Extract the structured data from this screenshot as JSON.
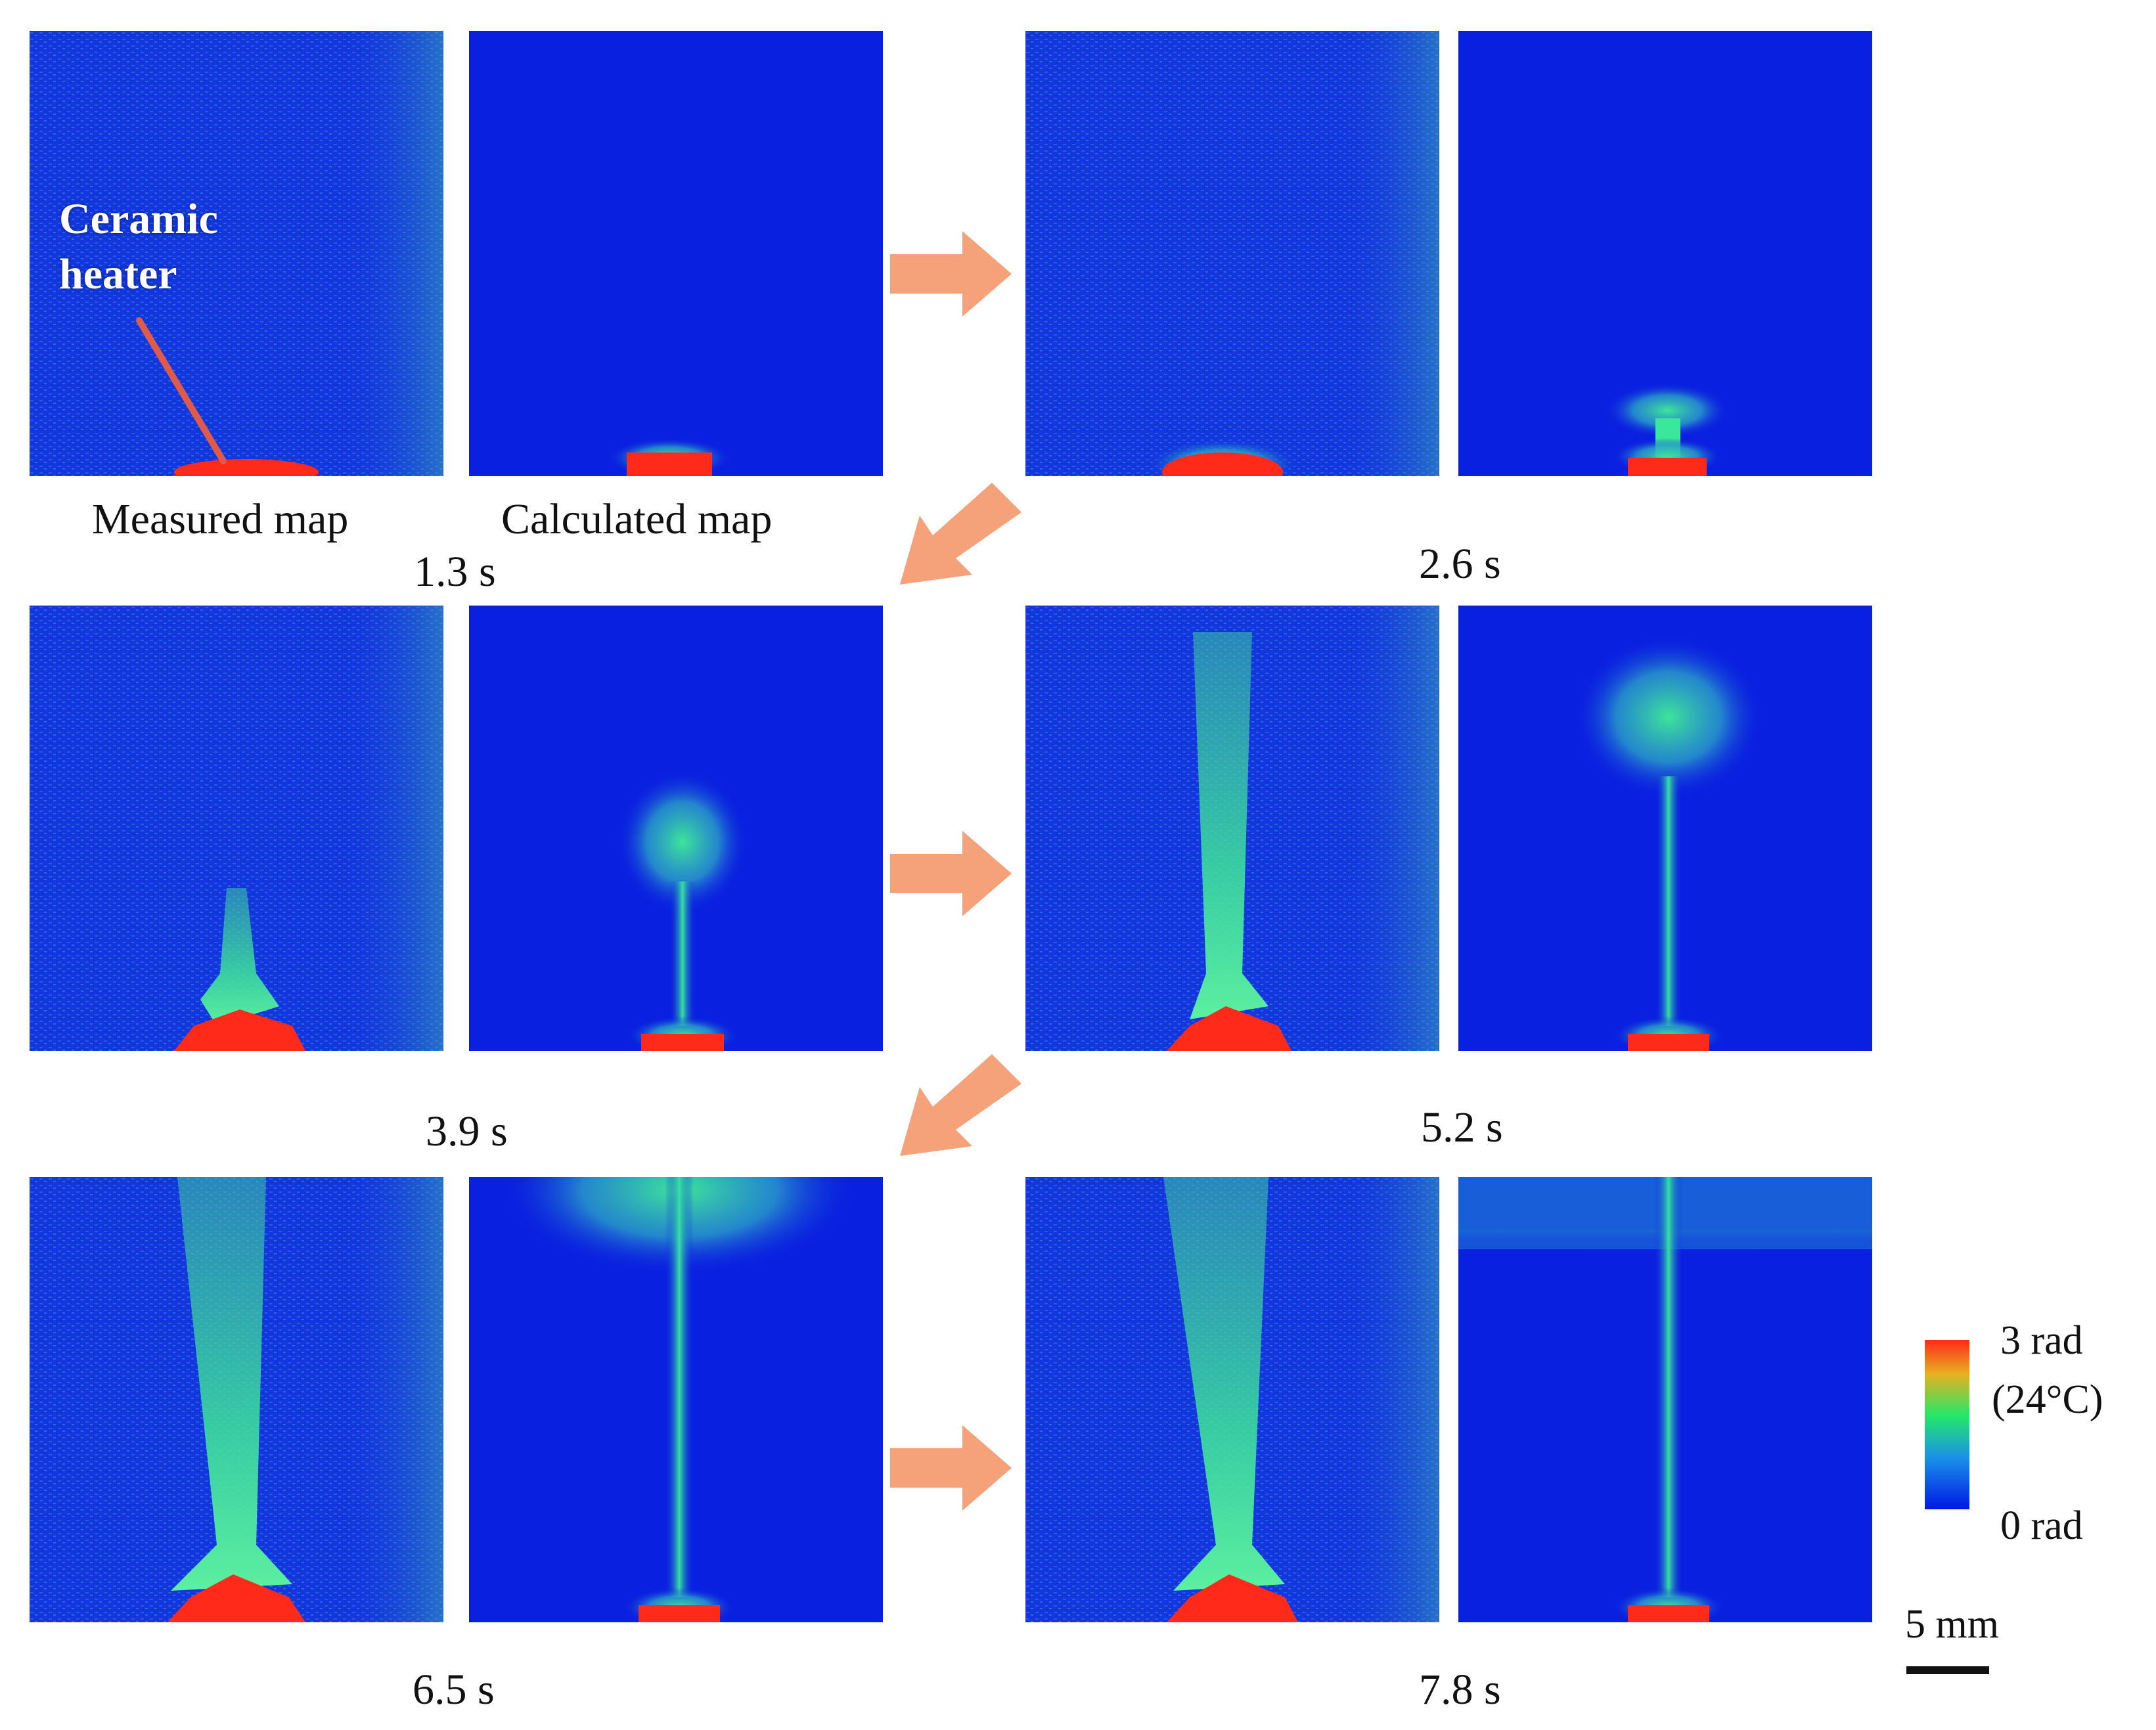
{
  "annotation": {
    "line1": "Ceramic",
    "line2": "heater",
    "pointer_color": "#e05a4a"
  },
  "column_labels": {
    "measured": "Measured map",
    "calculated": "Calculated map"
  },
  "frames": [
    {
      "time": "1.3 s",
      "plume_level": 0.05
    },
    {
      "time": "2.6 s",
      "plume_level": 0.2
    },
    {
      "time": "3.9 s",
      "plume_level": 0.4
    },
    {
      "time": "5.2 s",
      "plume_level": 0.6
    },
    {
      "time": "6.5 s",
      "plume_level": 0.85
    },
    {
      "time": "7.8 s",
      "plume_level": 1.0
    }
  ],
  "colorbar": {
    "max_label": "3 rad",
    "temp_label": "(24°C)",
    "min_label": "0 rad",
    "colors": [
      "#ff2a1a",
      "#23e86a",
      "#0019e6"
    ]
  },
  "scale_bar": {
    "label": "5 mm"
  },
  "colors": {
    "background": "#0a20e0",
    "hot": "#ff2a1a",
    "plume": "#2ee6a0",
    "arrow": "#f5a27a"
  }
}
